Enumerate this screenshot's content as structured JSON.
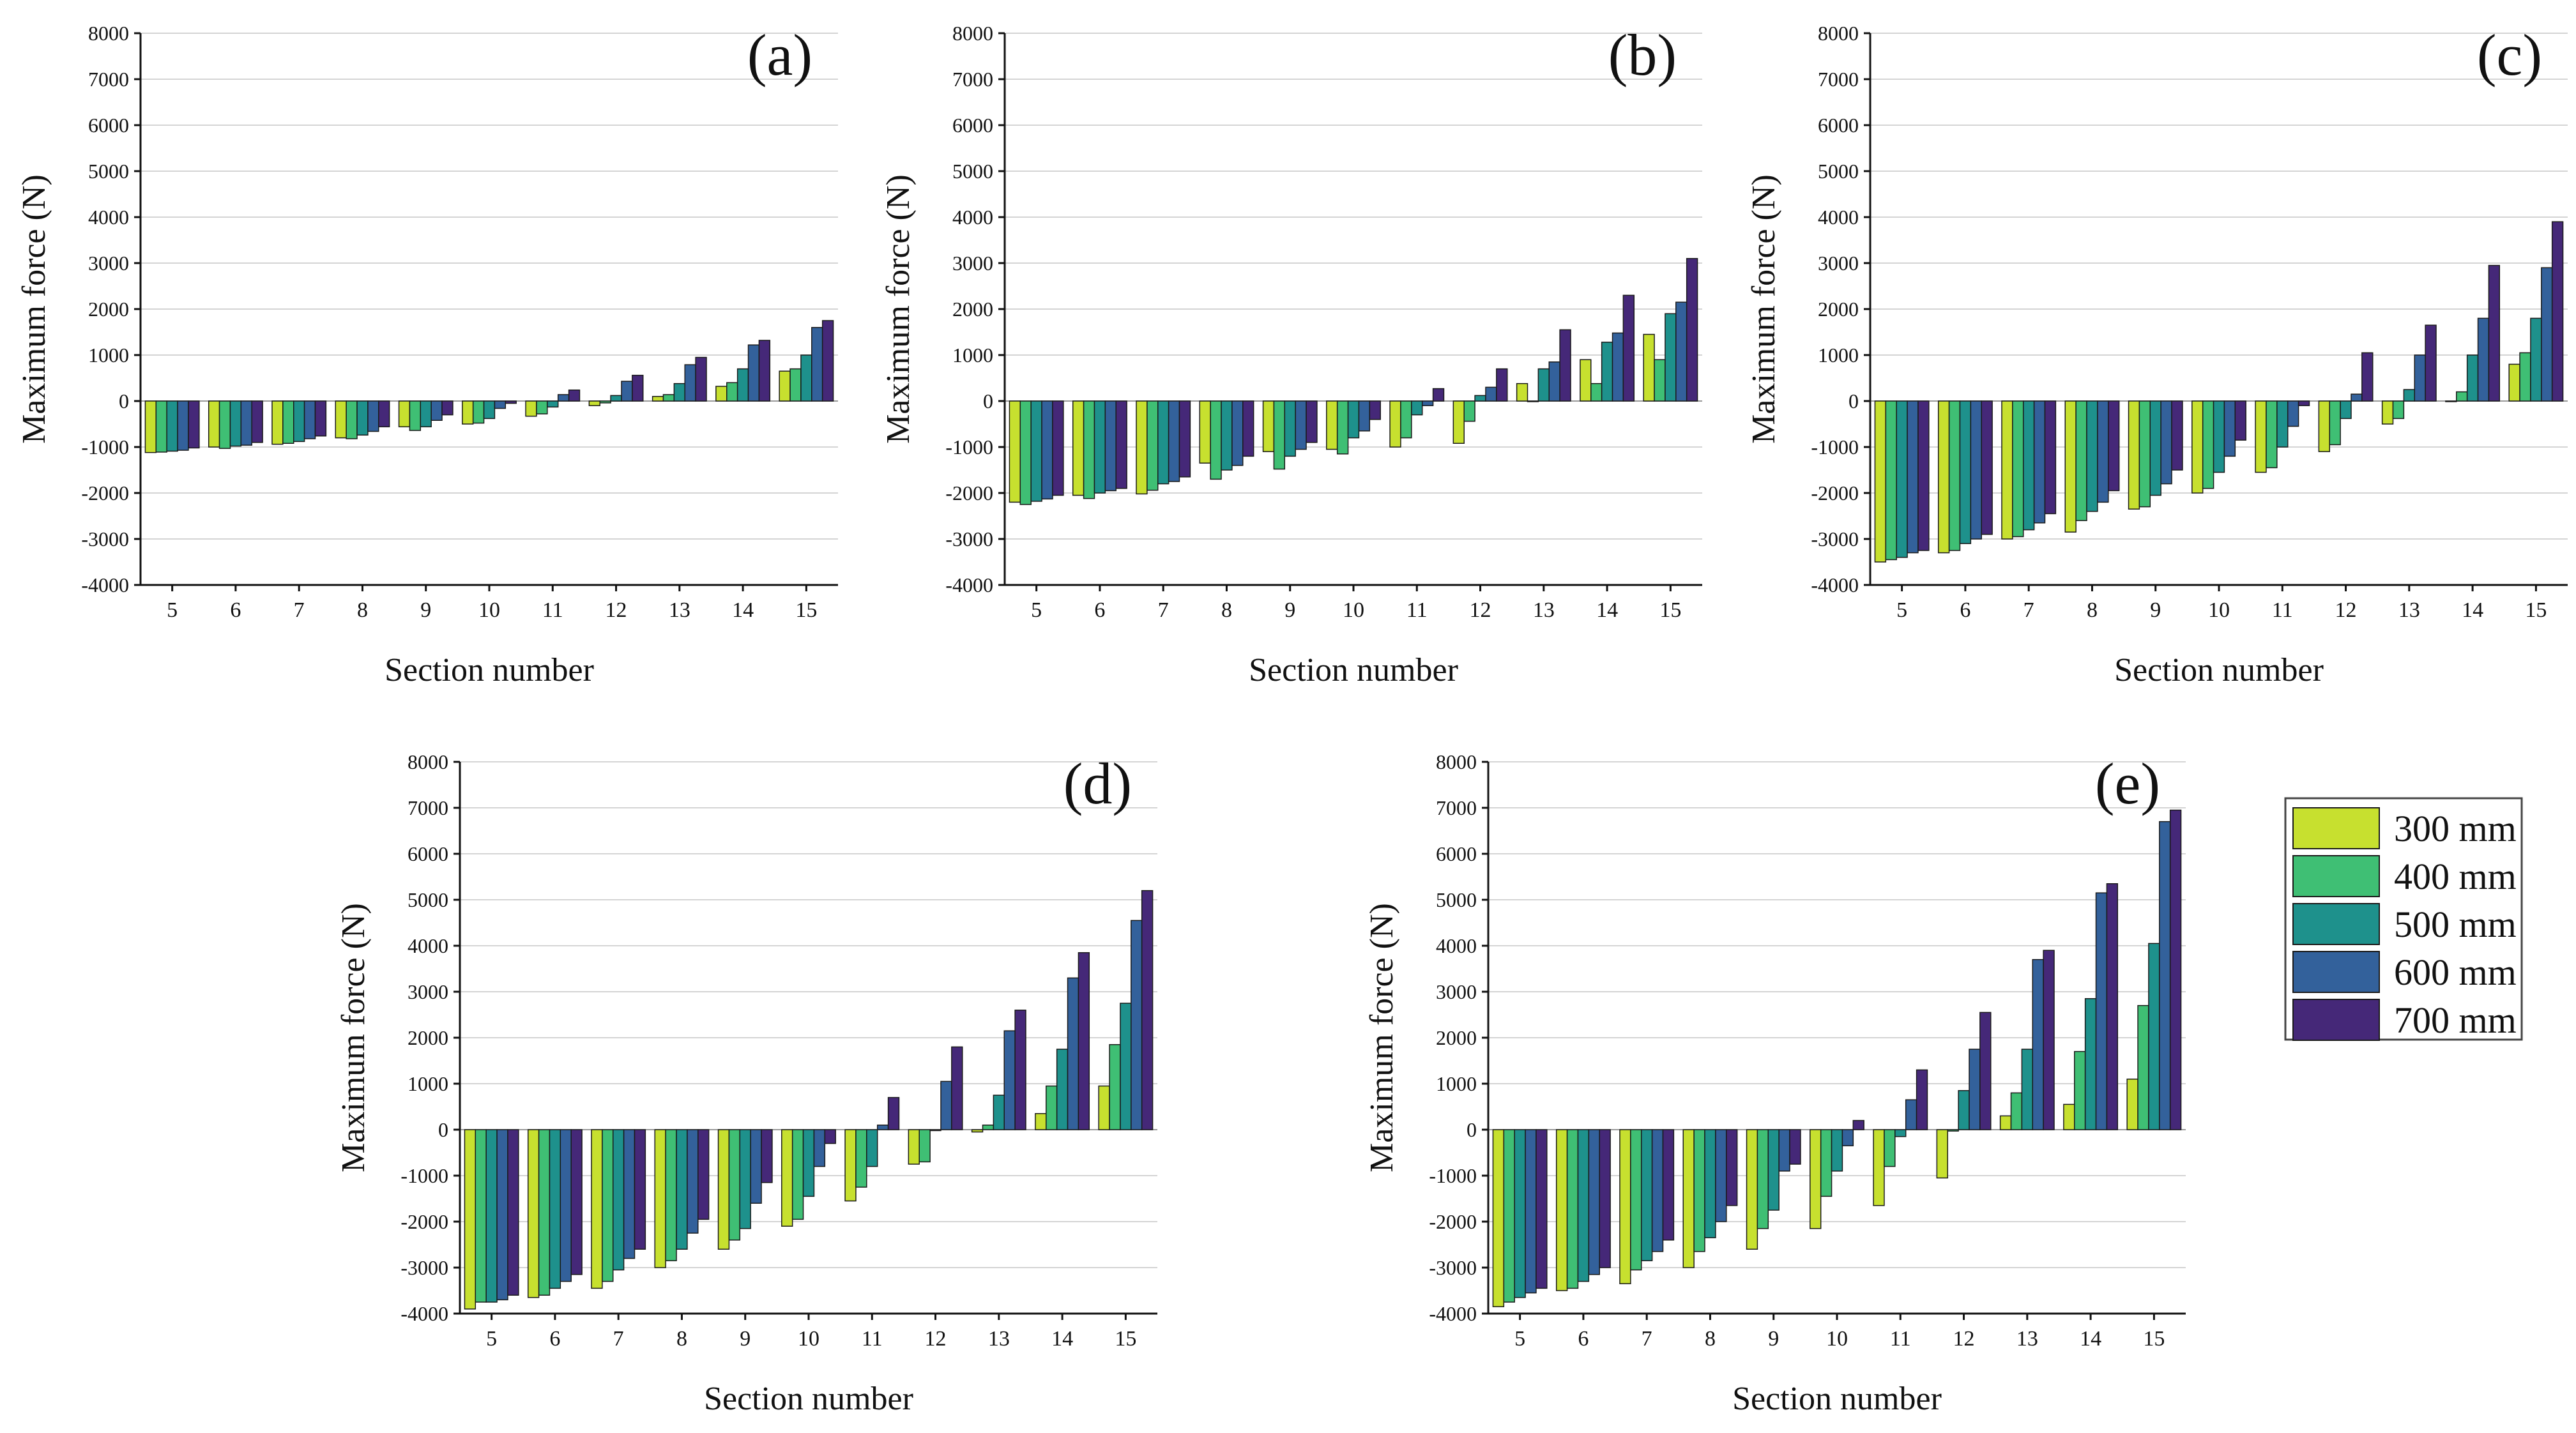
{
  "chart_data": [
    {
      "type": "bar",
      "panel_label": "(a)",
      "xlabel": "Section number",
      "ylabel": "Maximum force (N)",
      "ylim": [
        -4000,
        8000
      ],
      "yticks": [
        "8000",
        "7000",
        "6000",
        "5000",
        "4000",
        "3000",
        "2000",
        "1000",
        "0",
        "-1000",
        "-2000",
        "-3000",
        "-4000"
      ],
      "categories": [
        "5",
        "6",
        "7",
        "8",
        "9",
        "10",
        "11",
        "12",
        "13",
        "14",
        "15"
      ],
      "series": [
        {
          "name": "300 mm",
          "values": [
            -1120,
            -1000,
            -940,
            -800,
            -560,
            -500,
            -330,
            -100,
            100,
            320,
            650
          ]
        },
        {
          "name": "400 mm",
          "values": [
            -1110,
            -1030,
            -920,
            -820,
            -640,
            -480,
            -280,
            -40,
            140,
            400,
            700
          ]
        },
        {
          "name": "500 mm",
          "values": [
            -1090,
            -980,
            -880,
            -740,
            -560,
            -380,
            -130,
            120,
            380,
            700,
            1000
          ]
        },
        {
          "name": "600 mm",
          "values": [
            -1070,
            -960,
            -820,
            -660,
            -420,
            -160,
            140,
            430,
            790,
            1220,
            1600
          ]
        },
        {
          "name": "700 mm",
          "values": [
            -1020,
            -900,
            -760,
            -560,
            -300,
            -50,
            240,
            560,
            950,
            1320,
            1750
          ]
        }
      ]
    },
    {
      "type": "bar",
      "panel_label": "(b)",
      "xlabel": "Section number",
      "ylabel": "Maximum force (N)",
      "ylim": [
        -4000,
        8000
      ],
      "yticks": [
        "8000",
        "7000",
        "6000",
        "5000",
        "4000",
        "3000",
        "2000",
        "1000",
        "0",
        "-1000",
        "-2000",
        "-3000",
        "-4000"
      ],
      "categories": [
        "5",
        "6",
        "7",
        "8",
        "9",
        "10",
        "11",
        "12",
        "13",
        "14",
        "15"
      ],
      "series": [
        {
          "name": "300 mm",
          "values": [
            -2200,
            -2050,
            -2020,
            -1350,
            -1100,
            -1050,
            -1000,
            -920,
            380,
            900,
            1450
          ]
        },
        {
          "name": "400 mm",
          "values": [
            -2250,
            -2120,
            -1940,
            -1700,
            -1480,
            -1150,
            -800,
            -440,
            0,
            380,
            900
          ]
        },
        {
          "name": "500 mm",
          "values": [
            -2180,
            -2000,
            -1800,
            -1500,
            -1200,
            -800,
            -300,
            120,
            700,
            1280,
            1900
          ]
        },
        {
          "name": "600 mm",
          "values": [
            -2130,
            -1950,
            -1750,
            -1400,
            -1050,
            -650,
            -100,
            300,
            850,
            1480,
            2150
          ]
        },
        {
          "name": "700 mm",
          "values": [
            -2050,
            -1900,
            -1650,
            -1200,
            -900,
            -400,
            270,
            700,
            1550,
            2300,
            3100
          ]
        }
      ]
    },
    {
      "type": "bar",
      "panel_label": "(c)",
      "xlabel": "Section number",
      "ylabel": "Maximum force (N)",
      "ylim": [
        -4000,
        8000
      ],
      "yticks": [
        "8000",
        "7000",
        "6000",
        "5000",
        "4000",
        "3000",
        "2000",
        "1000",
        "0",
        "-1000",
        "-2000",
        "-3000",
        "-4000"
      ],
      "categories": [
        "5",
        "6",
        "7",
        "8",
        "9",
        "10",
        "11",
        "12",
        "13",
        "14",
        "15"
      ],
      "series": [
        {
          "name": "300 mm",
          "values": [
            -3500,
            -3300,
            -3000,
            -2850,
            -2350,
            -2000,
            -1550,
            -1100,
            -500,
            0,
            800
          ]
        },
        {
          "name": "400 mm",
          "values": [
            -3450,
            -3250,
            -2950,
            -2600,
            -2300,
            -1900,
            -1450,
            -950,
            -380,
            200,
            1050
          ]
        },
        {
          "name": "500 mm",
          "values": [
            -3400,
            -3100,
            -2800,
            -2400,
            -2050,
            -1550,
            -1000,
            -380,
            250,
            1000,
            1800
          ]
        },
        {
          "name": "600 mm",
          "values": [
            -3300,
            -3000,
            -2650,
            -2200,
            -1800,
            -1200,
            -550,
            150,
            1000,
            1800,
            2900
          ]
        },
        {
          "name": "700 mm",
          "values": [
            -3250,
            -2900,
            -2450,
            -1950,
            -1500,
            -850,
            -100,
            1050,
            1650,
            2950,
            3900
          ]
        }
      ]
    },
    {
      "type": "bar",
      "panel_label": "(d)",
      "xlabel": "Section number",
      "ylabel": "Maximum force (N)",
      "ylim": [
        -4000,
        8000
      ],
      "yticks": [
        "8000",
        "7000",
        "6000",
        "5000",
        "4000",
        "3000",
        "2000",
        "1000",
        "0",
        "-1000",
        "-2000",
        "-3000",
        "-4000"
      ],
      "categories": [
        "5",
        "6",
        "7",
        "8",
        "9",
        "10",
        "11",
        "12",
        "13",
        "14",
        "15"
      ],
      "series": [
        {
          "name": "300 mm",
          "values": [
            -3900,
            -3650,
            -3450,
            -3000,
            -2600,
            -2100,
            -1550,
            -750,
            -50,
            350,
            950
          ]
        },
        {
          "name": "400 mm",
          "values": [
            -3750,
            -3600,
            -3300,
            -2850,
            -2400,
            -1950,
            -1250,
            -700,
            100,
            950,
            1850
          ]
        },
        {
          "name": "500 mm",
          "values": [
            -3750,
            -3450,
            -3050,
            -2600,
            -2150,
            -1450,
            -800,
            -20,
            750,
            1750,
            2750
          ]
        },
        {
          "name": "600 mm",
          "values": [
            -3700,
            -3300,
            -2800,
            -2250,
            -1600,
            -800,
            100,
            1050,
            2150,
            3300,
            4550
          ]
        },
        {
          "name": "700 mm",
          "values": [
            -3600,
            -3150,
            -2600,
            -1950,
            -1150,
            -300,
            700,
            1800,
            2600,
            3850,
            5200
          ]
        }
      ]
    },
    {
      "type": "bar",
      "panel_label": "(e)",
      "xlabel": "Section number",
      "ylabel": "Maximum force (N)",
      "ylim": [
        -4000,
        8000
      ],
      "yticks": [
        "8000",
        "7000",
        "6000",
        "5000",
        "4000",
        "3000",
        "2000",
        "1000",
        "0",
        "-1000",
        "-2000",
        "-3000",
        "-4000"
      ],
      "categories": [
        "5",
        "6",
        "7",
        "8",
        "9",
        "10",
        "11",
        "12",
        "13",
        "14",
        "15"
      ],
      "series": [
        {
          "name": "300 mm",
          "values": [
            -3850,
            -3500,
            -3350,
            -3000,
            -2600,
            -2150,
            -1650,
            -1050,
            300,
            550,
            1100
          ]
        },
        {
          "name": "400 mm",
          "values": [
            -3750,
            -3450,
            -3050,
            -2650,
            -2150,
            -1450,
            -800,
            -30,
            800,
            1700,
            2700
          ]
        },
        {
          "name": "500 mm",
          "values": [
            -3650,
            -3300,
            -2850,
            -2350,
            -1750,
            -900,
            -150,
            850,
            1750,
            2850,
            4050
          ]
        },
        {
          "name": "600 mm",
          "values": [
            -3550,
            -3150,
            -2650,
            -2000,
            -900,
            -350,
            650,
            1750,
            3700,
            5150,
            6700
          ]
        },
        {
          "name": "700 mm",
          "values": [
            -3450,
            -3000,
            -2400,
            -1650,
            -750,
            200,
            1300,
            2550,
            3900,
            5350,
            6950
          ]
        }
      ]
    }
  ],
  "legend": {
    "placement": "right of panel (e)",
    "items": [
      {
        "label": "300 mm",
        "color": "#c7e02f"
      },
      {
        "label": "400 mm",
        "color": "#3fbf74"
      },
      {
        "label": "500 mm",
        "color": "#1e918c"
      },
      {
        "label": "600 mm",
        "color": "#33619b"
      },
      {
        "label": "700 mm",
        "color": "#452878"
      }
    ]
  }
}
